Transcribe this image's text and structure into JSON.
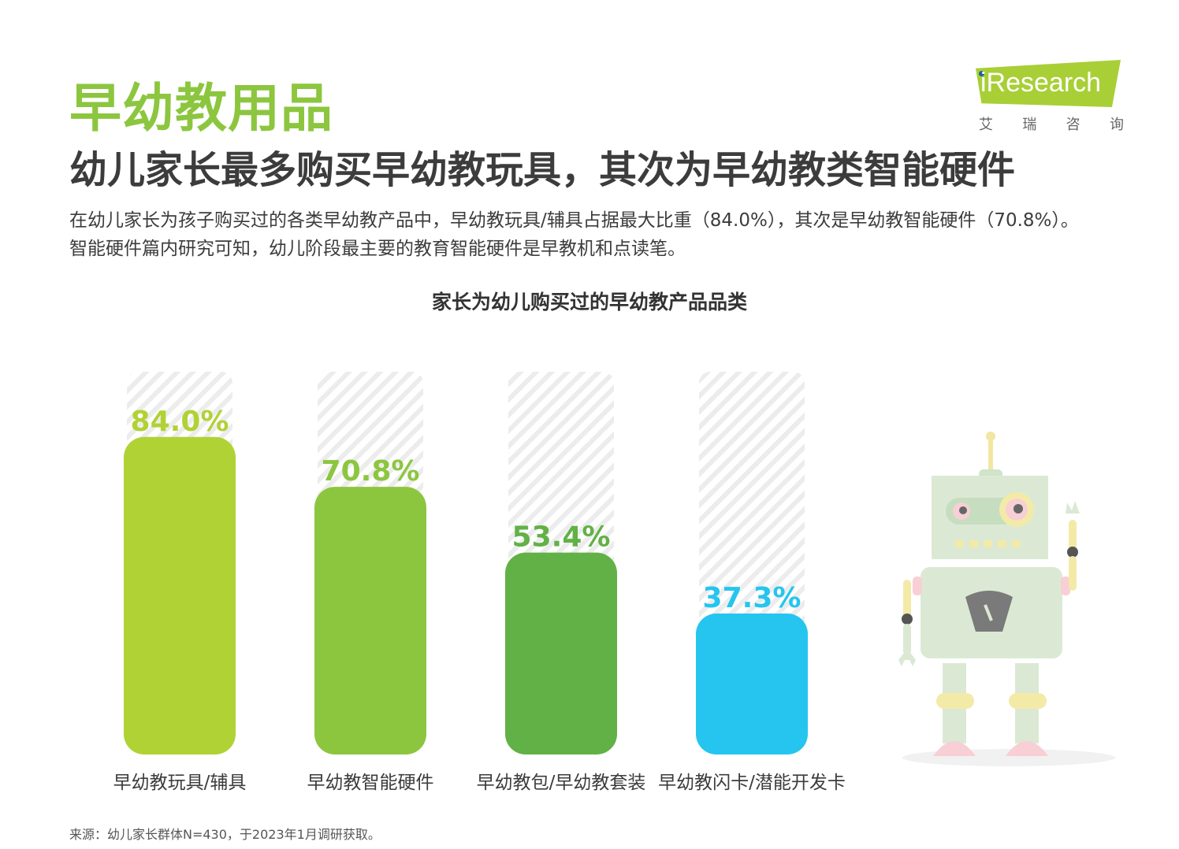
{
  "header": {
    "section_title": "早幼教用品",
    "headline": "幼儿家长最多购买早幼教玩具，其次为早幼教类智能硬件",
    "summary": "在幼儿家长为孩子购买过的各类早幼教产品中，早幼教玩具/辅具占据最大比重（84.0%），其次是早幼教智能硬件（70.8%）。智能硬件篇内研究可知，幼儿阶段最主要的教育智能硬件是早教机和点读笔。"
  },
  "logo": {
    "brand": "iResearch",
    "chars": [
      "艾",
      "瑞",
      "咨",
      "询"
    ],
    "color": "#a8cf36"
  },
  "chart_data": {
    "type": "bar",
    "title": "家长为幼儿购买过的早幼教产品品类",
    "categories": [
      "早幼教玩具/辅具",
      "早幼教智能硬件",
      "早幼教包/早幼教套装",
      "早幼教闪卡/潜能开发卡"
    ],
    "values": [
      84.0,
      70.8,
      53.4,
      37.3
    ],
    "labels": [
      "84.0%",
      "70.8%",
      "53.4%",
      "37.3%"
    ],
    "colors": [
      "#b1d235",
      "#8cc63f",
      "#62b146",
      "#25c5f0"
    ],
    "ylim": [
      0,
      100
    ],
    "unit": "%",
    "grid": false,
    "legend": "none"
  },
  "source": "来源：幼儿家长群体N=430，于2023年1月调研获取。"
}
